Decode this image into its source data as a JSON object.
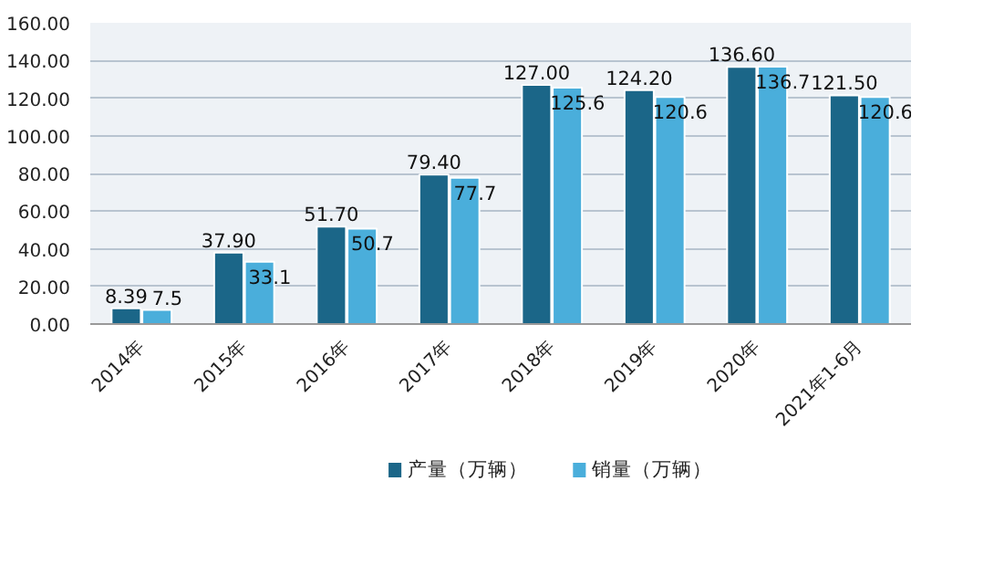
{
  "chart_data": {
    "type": "bar",
    "categories": [
      "2014年",
      "2015年",
      "2016年",
      "2017年",
      "2018年",
      "2019年",
      "2020年",
      "2021年1-6月"
    ],
    "series": [
      {
        "name": "产量（万辆）",
        "color": "#1b6688",
        "values": [
          8.39,
          37.9,
          51.7,
          79.4,
          127.0,
          124.2,
          136.6,
          121.5
        ],
        "value_labels": [
          "8.39",
          "37.90",
          "51.70",
          "79.40",
          "127.00",
          "124.20",
          "136.60",
          "121.50"
        ]
      },
      {
        "name": "销量（万辆）",
        "color": "#4aaedb",
        "values": [
          7.5,
          33.1,
          50.7,
          77.7,
          125.6,
          120.6,
          136.7,
          120.6
        ],
        "value_labels": [
          "7.5",
          "33.1",
          "50.7",
          "77.7",
          "125.6",
          "120.6",
          "136.7",
          "120.6"
        ]
      }
    ],
    "ylim": [
      0,
      160
    ],
    "yticks": [
      {
        "value": 0,
        "label": "0.00"
      },
      {
        "value": 20,
        "label": "20.00"
      },
      {
        "value": 40,
        "label": "40.00"
      },
      {
        "value": 60,
        "label": "60.00"
      },
      {
        "value": 80,
        "label": "80.00"
      },
      {
        "value": 100,
        "label": "100.00"
      },
      {
        "value": 120,
        "label": "120.00"
      },
      {
        "value": 140,
        "label": "140.00"
      },
      {
        "value": 160,
        "label": "160.00"
      }
    ],
    "grid": "y",
    "legend": "bottom"
  }
}
